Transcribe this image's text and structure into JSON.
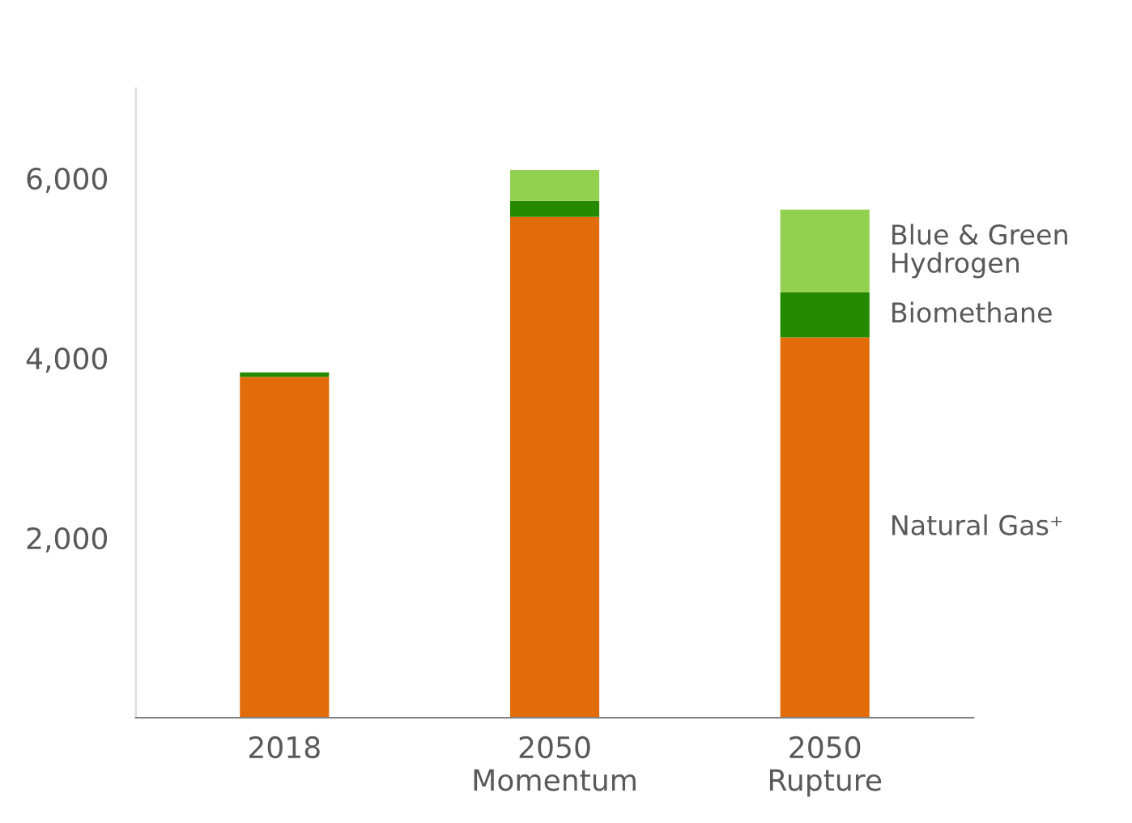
{
  "chart_data": {
    "type": "bar",
    "stacked": true,
    "categories": [
      "2018",
      "2050\nMomentum",
      "2050\nRupture"
    ],
    "series": [
      {
        "name": "Natural Gas⁺",
        "color": "#e36c0a",
        "values": [
          3790,
          5570,
          4230
        ]
      },
      {
        "name": "Biomethane",
        "color": "#268a00",
        "values": [
          50,
          180,
          500
        ]
      },
      {
        "name": "Blue & Green\nHydrogen",
        "color": "#92d050",
        "values": [
          null,
          340,
          920
        ]
      }
    ],
    "ylim": [
      0,
      7000
    ],
    "yticks": [
      {
        "value": 2000,
        "label": "2,000"
      },
      {
        "value": 4000,
        "label": "4,000"
      },
      {
        "value": 6000,
        "label": "6,000"
      }
    ],
    "grid": false,
    "legend": false
  }
}
